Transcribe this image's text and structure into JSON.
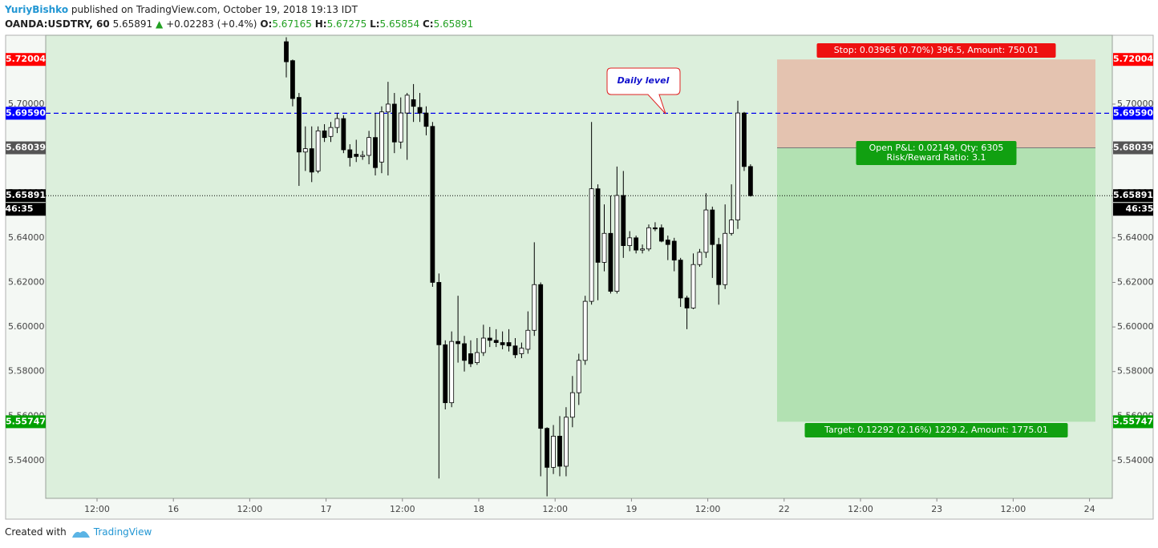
{
  "header": {
    "author": "YuriyBishko",
    "published": "published on TradingView.com, October 19, 2018 19:13 IDT",
    "symbol": "OANDA:USDTRY, 60",
    "last": "5.65891",
    "arrow": "▲",
    "change": "+0.02283 (+0.4%)",
    "ohlc_labels": [
      "O:",
      "H:",
      "L:",
      "C:"
    ],
    "ohlc_values": [
      "5.67165",
      "5.67275",
      "5.65854",
      "5.65891"
    ]
  },
  "chart_data": {
    "type": "candlestick",
    "open": [
      5.728,
      5.7195,
      5.703,
      5.6785,
      5.68,
      5.67,
      5.688,
      5.6855,
      5.6895,
      5.6935,
      5.6795,
      5.6775,
      5.6765,
      5.677,
      5.685,
      5.674,
      5.6965,
      5.7,
      5.683,
      5.696,
      5.702,
      5.6985,
      5.696,
      5.69,
      5.62,
      5.592,
      5.566,
      5.5935,
      5.5925,
      5.588,
      5.584,
      5.5885,
      5.595,
      5.594,
      5.593,
      5.593,
      5.5915,
      5.588,
      5.59,
      5.5985,
      5.619,
      5.5545,
      5.537,
      5.551,
      5.5375,
      5.5595,
      5.5705,
      5.585,
      5.6115,
      5.662,
      5.629,
      5.642,
      5.616,
      5.659,
      5.6365,
      5.64,
      5.6345,
      5.635,
      5.6445,
      5.6445,
      5.639,
      5.6385,
      5.63,
      5.613,
      5.6085,
      5.628,
      5.6335,
      5.6525,
      5.637,
      5.619,
      5.642,
      5.648,
      5.696,
      5.672
    ],
    "high": [
      5.73,
      5.72,
      5.705,
      5.69,
      5.69,
      5.69,
      5.691,
      5.692,
      5.696,
      5.695,
      5.682,
      5.684,
      5.679,
      5.688,
      5.696,
      5.699,
      5.71,
      5.705,
      5.703,
      5.705,
      5.709,
      5.705,
      5.699,
      5.692,
      5.624,
      5.594,
      5.598,
      5.614,
      5.596,
      5.594,
      5.595,
      5.601,
      5.6,
      5.599,
      5.598,
      5.599,
      5.595,
      5.593,
      5.607,
      5.638,
      5.62,
      5.555,
      5.556,
      5.56,
      5.564,
      5.578,
      5.588,
      5.614,
      5.692,
      5.664,
      5.655,
      5.659,
      5.672,
      5.67,
      5.643,
      5.641,
      5.637,
      5.646,
      5.647,
      5.646,
      5.641,
      5.64,
      5.631,
      5.614,
      5.633,
      5.635,
      5.66,
      5.654,
      5.64,
      5.655,
      5.664,
      5.7015,
      5.6965,
      5.673
    ],
    "low": [
      5.712,
      5.699,
      5.6633,
      5.67,
      5.665,
      5.669,
      5.683,
      5.683,
      5.687,
      5.678,
      5.672,
      5.674,
      5.675,
      5.673,
      5.668,
      5.669,
      5.668,
      5.678,
      5.68,
      5.675,
      5.692,
      5.692,
      5.686,
      5.618,
      5.532,
      5.563,
      5.564,
      5.584,
      5.58,
      5.582,
      5.583,
      5.587,
      5.591,
      5.591,
      5.59,
      5.589,
      5.586,
      5.586,
      5.588,
      5.596,
      5.533,
      5.524,
      5.534,
      5.533,
      5.533,
      5.555,
      5.565,
      5.583,
      5.61,
      5.612,
      5.625,
      5.615,
      5.615,
      5.631,
      5.634,
      5.633,
      5.633,
      5.634,
      5.643,
      5.638,
      5.63,
      5.625,
      5.609,
      5.599,
      5.608,
      5.627,
      5.631,
      5.622,
      5.61,
      5.617,
      5.641,
      5.644,
      5.67,
      5.6585
    ],
    "close": [
      5.719,
      5.7025,
      5.6785,
      5.68,
      5.6695,
      5.688,
      5.685,
      5.6895,
      5.6935,
      5.6795,
      5.676,
      5.6765,
      5.677,
      5.685,
      5.6715,
      5.6965,
      5.7,
      5.683,
      5.696,
      5.704,
      5.699,
      5.696,
      5.69,
      5.62,
      5.592,
      5.566,
      5.5935,
      5.5925,
      5.585,
      5.5835,
      5.5885,
      5.595,
      5.594,
      5.593,
      5.592,
      5.5915,
      5.5875,
      5.5905,
      5.5985,
      5.619,
      5.5545,
      5.537,
      5.551,
      5.5375,
      5.5595,
      5.5705,
      5.585,
      5.6115,
      5.662,
      5.629,
      5.642,
      5.616,
      5.659,
      5.6365,
      5.64,
      5.6345,
      5.635,
      5.6445,
      5.644,
      5.6385,
      5.637,
      5.63,
      5.613,
      5.6085,
      5.628,
      5.6335,
      5.6525,
      5.637,
      5.619,
      5.642,
      5.648,
      5.696,
      5.672,
      5.65891
    ],
    "ylim": [
      5.5231,
      5.7309
    ],
    "yticks": [
      {
        "value": 5.54,
        "label": "5.54000"
      },
      {
        "value": 5.56,
        "label": "5.56000"
      },
      {
        "value": 5.58,
        "label": "5.58000"
      },
      {
        "value": 5.6,
        "label": "5.60000"
      },
      {
        "value": 5.62,
        "label": "5.62000"
      },
      {
        "value": 5.64,
        "label": "5.64000"
      },
      {
        "value": 5.66,
        "label": "5.66000"
      },
      {
        "value": 5.68,
        "label": "5.68000"
      },
      {
        "value": 5.7,
        "label": "5.70000"
      }
    ],
    "x_labels": [
      "12:00",
      "16",
      "12:00",
      "17",
      "12:00",
      "18",
      "12:00",
      "19",
      "12:00",
      "22",
      "12:00",
      "23",
      "12:00",
      "24"
    ],
    "levels": [
      {
        "value": 5.72004,
        "color": "#ff0000"
      },
      {
        "value": 5.6959,
        "label": "5.69590",
        "color": "#0000ff"
      },
      {
        "value": 5.68039,
        "color": "#555555"
      },
      {
        "value": 5.65891,
        "color": "#000000"
      },
      {
        "value": 5.55747,
        "color": "#00a000"
      }
    ],
    "countdown": "46:35",
    "annotation": "Daily level",
    "position": {
      "stop_label": "Stop: 0.03965 (0.70%) 396.5, Amount: 750.01",
      "pnl_label": "Open P&L: 0.02149, Qty: 6305",
      "rr_label": "Risk/Reward Ratio: 3.1",
      "target_label": "Target: 0.12292 (2.16%) 1229.2, Amount: 1775.01"
    }
  },
  "footer": {
    "created": "Created with",
    "brand": "TradingView"
  }
}
